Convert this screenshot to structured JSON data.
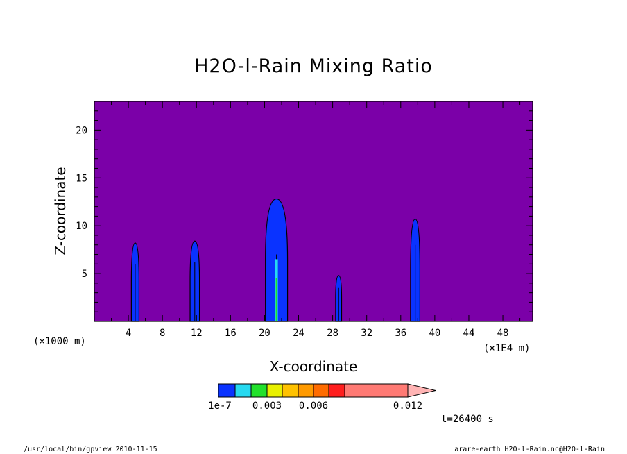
{
  "chart_data": {
    "type": "heatmap",
    "title": "H2O-l-Rain Mixing Ratio",
    "xlabel": "X-coordinate",
    "ylabel": "Z-coordinate",
    "x_units_left": "(×1000 m)",
    "x_units_right": "(×1E4 m)",
    "xlim": [
      0,
      51.5
    ],
    "ylim": [
      0,
      23
    ],
    "x_ticks": [
      4,
      8,
      12,
      16,
      20,
      24,
      28,
      32,
      36,
      40,
      44,
      48
    ],
    "y_ticks": [
      5,
      10,
      15,
      20
    ],
    "x_tick_labels": [
      "4",
      "8",
      "12",
      "16",
      "20",
      "24",
      "28",
      "32",
      "36",
      "40",
      "44",
      "48"
    ],
    "y_tick_labels": [
      "5",
      "10",
      "15",
      "20"
    ],
    "background_color": "#7b00a8",
    "plumes": [
      {
        "x_center": 4.8,
        "half_width": 0.45,
        "top": 8.2,
        "inner_top": 6.0
      },
      {
        "x_center": 11.8,
        "half_width": 0.55,
        "top": 8.4,
        "inner_top": 6.2
      },
      {
        "x_center": 21.4,
        "half_width": 1.3,
        "top": 12.8,
        "inner_top": 7.0
      },
      {
        "x_center": 28.7,
        "half_width": 0.35,
        "top": 4.8,
        "inner_top": 3.5
      },
      {
        "x_center": 37.7,
        "half_width": 0.55,
        "top": 10.7,
        "inner_top": 8.0
      }
    ],
    "colorbar": {
      "levels_labels": [
        "1e-7",
        "0.003",
        "0.006",
        "0.012"
      ],
      "colors": [
        "#0a33ff",
        "#27d9f0",
        "#22e12c",
        "#e8f000",
        "#ffc200",
        "#ff9a00",
        "#ff6c00",
        "#ff1e1e",
        "#ff7a74",
        "#ffb4b4"
      ]
    },
    "time_label": "t=26400 s"
  },
  "footer": {
    "left": "/usr/local/bin/gpview  2010-11-15",
    "right": "arare-earth_H2O-l-Rain.nc@H2O-l-Rain"
  }
}
